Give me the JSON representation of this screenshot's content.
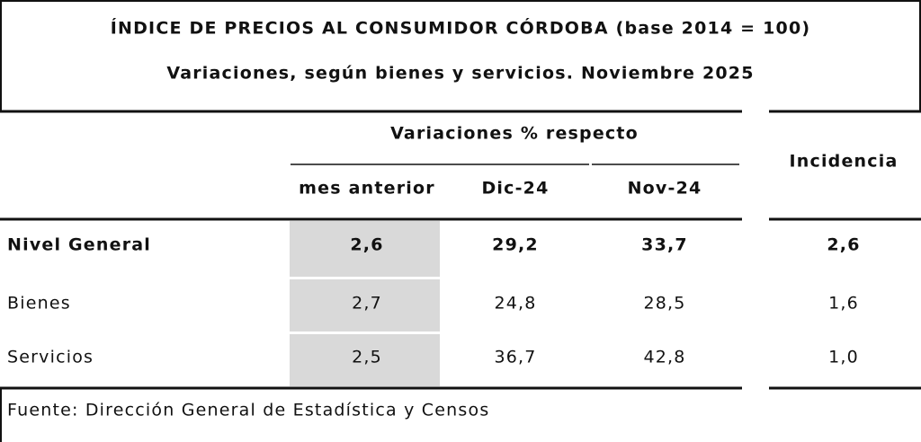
{
  "title": "ÍNDICE DE PRECIOS AL CONSUMIDOR CÓRDOBA (base 2014 = 100)",
  "subtitle": "Variaciones, según bienes y servicios. Noviembre 2025",
  "table": {
    "group_header": "Variaciones % respecto",
    "columns": [
      "mes anterior",
      "Dic-24",
      "Nov-24",
      "Incidencia"
    ],
    "rows": [
      [
        "Nivel General",
        "2,6",
        "29,2",
        "33,7",
        "2,6"
      ],
      [
        "Bienes",
        "2,7",
        "24,8",
        "28,5",
        "1,6"
      ],
      [
        "Servicios",
        "2,5",
        "36,7",
        "42,8",
        "1,0"
      ]
    ]
  },
  "source": "Fuente: Dirección General de Estadística y Censos"
}
